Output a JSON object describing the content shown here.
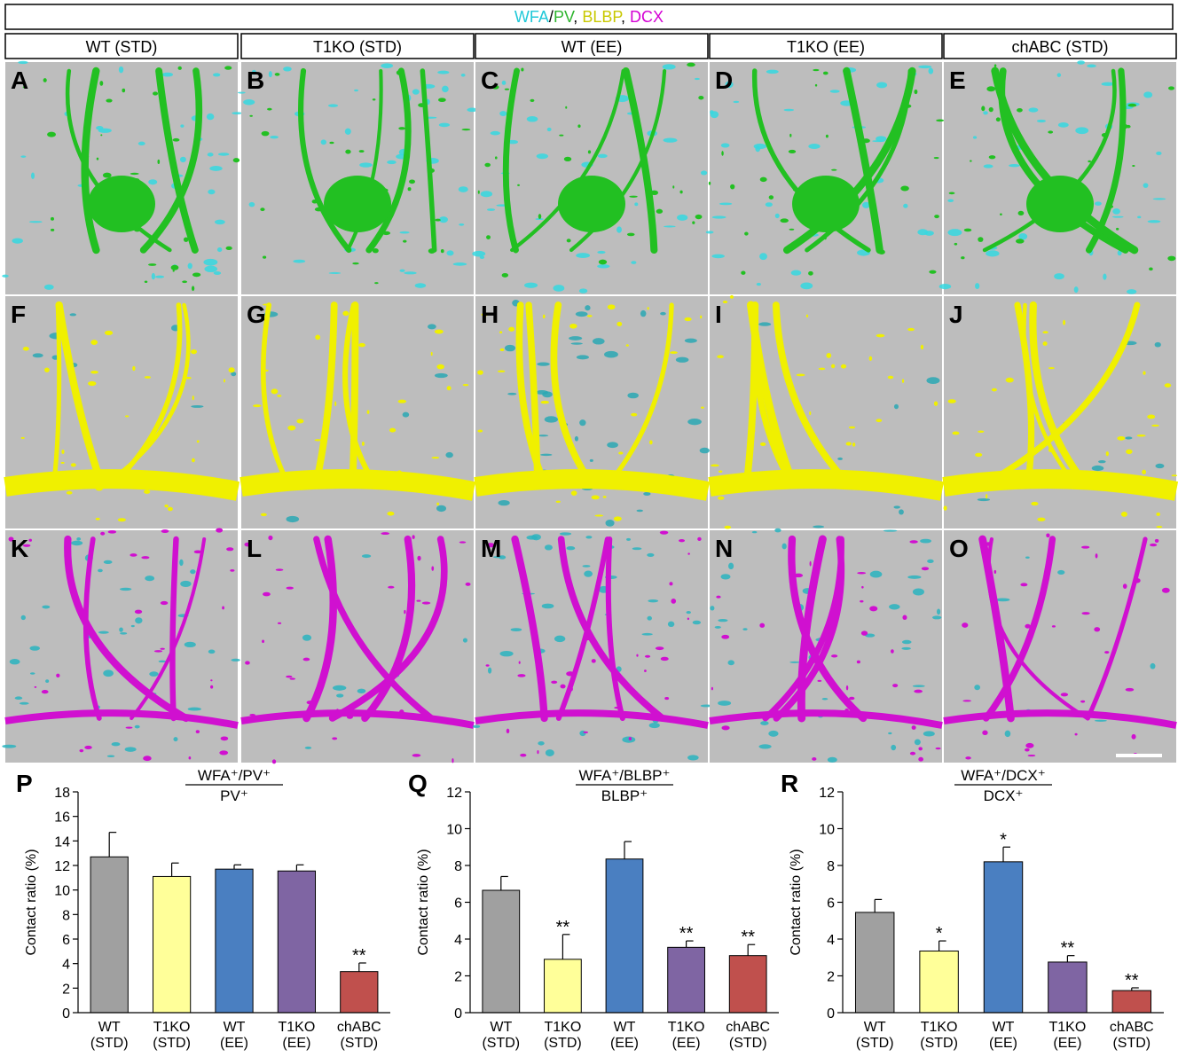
{
  "header": {
    "legend": [
      {
        "text": "WFA",
        "color": "#1fc8d8"
      },
      {
        "text": "/",
        "color": "#000000"
      },
      {
        "text": "PV",
        "color": "#2fb52f"
      },
      {
        "text": ", ",
        "color": "#000000"
      },
      {
        "text": "BLBP",
        "color": "#c8c800"
      },
      {
        "text": ", ",
        "color": "#000000"
      },
      {
        "text": "DCX",
        "color": "#d400d4"
      }
    ],
    "columns": [
      "WT (STD)",
      "T1KO (STD)",
      "WT (EE)",
      "T1KO (EE)",
      "chABC (STD)"
    ]
  },
  "panels": [
    [
      "A",
      "B",
      "C",
      "D",
      "E"
    ],
    [
      "F",
      "G",
      "H",
      "I",
      "J"
    ],
    [
      "K",
      "L",
      "M",
      "N",
      "O"
    ]
  ],
  "chart_data": [
    {
      "type": "bar",
      "panel_label": "P",
      "title_numerator": "WFA⁺/PV⁺",
      "title_denominator": "PV⁺",
      "y_label": "Contact ratio (%)",
      "categories": [
        [
          "WT",
          "(STD)"
        ],
        [
          "T1KO",
          "(STD)"
        ],
        [
          "WT",
          "(EE)"
        ],
        [
          "T1KO",
          "(EE)"
        ],
        [
          "chABC",
          "(STD)"
        ]
      ],
      "values": [
        12.7,
        11.1,
        11.7,
        11.55,
        3.35
      ],
      "errors": [
        2.0,
        1.1,
        0.35,
        0.5,
        0.7
      ],
      "colors": [
        "#a0a0a0",
        "#ffff99",
        "#4a7fc1",
        "#7f65a3",
        "#c0504d"
      ],
      "annotations": [
        null,
        null,
        null,
        null,
        "**"
      ],
      "ylim": [
        0,
        18
      ],
      "yticks": [
        0,
        2,
        4,
        6,
        8,
        10,
        12,
        14,
        16,
        18
      ]
    },
    {
      "type": "bar",
      "panel_label": "Q",
      "title_numerator": "WFA⁺/BLBP⁺",
      "title_denominator": "BLBP⁺",
      "y_label": "Contact ratio (%)",
      "categories": [
        [
          "WT",
          "(STD)"
        ],
        [
          "T1KO",
          "(STD)"
        ],
        [
          "WT",
          "(EE)"
        ],
        [
          "T1KO",
          "(EE)"
        ],
        [
          "chABC",
          "(STD)"
        ]
      ],
      "values": [
        6.65,
        2.9,
        8.35,
        3.55,
        3.1
      ],
      "errors": [
        0.75,
        1.35,
        0.95,
        0.35,
        0.6
      ],
      "colors": [
        "#a0a0a0",
        "#ffff99",
        "#4a7fc1",
        "#7f65a3",
        "#c0504d"
      ],
      "annotations": [
        null,
        "**",
        null,
        "**",
        "**"
      ],
      "ylim": [
        0,
        12
      ],
      "yticks": [
        0,
        2,
        4,
        6,
        8,
        10,
        12
      ]
    },
    {
      "type": "bar",
      "panel_label": "R",
      "title_numerator": "WFA⁺/DCX⁺",
      "title_denominator": "DCX⁺",
      "y_label": "Contact ratio (%)",
      "categories": [
        [
          "WT",
          "(STD)"
        ],
        [
          "T1KO",
          "(STD)"
        ],
        [
          "WT",
          "(EE)"
        ],
        [
          "T1KO",
          "(EE)"
        ],
        [
          "chABC",
          "(STD)"
        ]
      ],
      "values": [
        5.45,
        3.35,
        8.2,
        2.75,
        1.2
      ],
      "errors": [
        0.7,
        0.55,
        0.8,
        0.35,
        0.15
      ],
      "colors": [
        "#a0a0a0",
        "#ffff99",
        "#4a7fc1",
        "#7f65a3",
        "#c0504d"
      ],
      "annotations": [
        null,
        "*",
        "*",
        "**",
        "**"
      ],
      "ylim": [
        0,
        12
      ],
      "yticks": [
        0,
        2,
        4,
        6,
        8,
        10,
        12
      ]
    }
  ]
}
